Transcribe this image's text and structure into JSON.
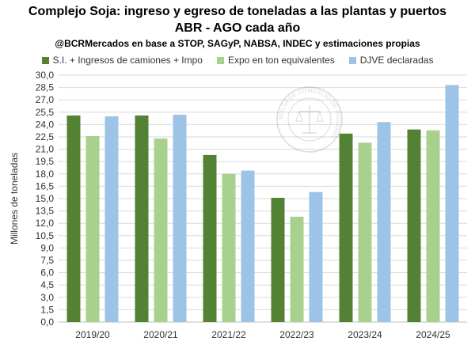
{
  "header": {
    "title": "Complejo Soja: ingreso y egreso de toneladas a las plantas y puertos",
    "subtitle": "ABR - AGO cada año",
    "source": "@BCRMercados  en base a STOP, SAGyP, NABSA, INDEC y estimaciones propias"
  },
  "watermark": {
    "text": "BOLSA DE COMERCIO DE ROSARIO"
  },
  "chart_data": {
    "type": "bar",
    "categories": [
      "2019/20",
      "2020/21",
      "2021/22",
      "2022/23",
      "2023/24",
      "2024/25"
    ],
    "ylabel": "Millones de toneladas",
    "ylim": [
      0,
      30
    ],
    "ytick_step": 1.5,
    "yticks": [
      "0,0",
      "1,5",
      "3,0",
      "4,5",
      "6,0",
      "7,5",
      "9,0",
      "10,5",
      "12,0",
      "13,5",
      "15,0",
      "16,5",
      "18,0",
      "19,5",
      "21,0",
      "22,5",
      "24,0",
      "25,5",
      "27,0",
      "28,5",
      "30,0"
    ],
    "grid": true,
    "legend_position": "top",
    "series": [
      {
        "name": "S.I. + Ingresos de camiones + Impo",
        "color": "#548235",
        "values": [
          25.1,
          25.1,
          20.3,
          15.1,
          22.9,
          23.4
        ]
      },
      {
        "name": "Expo en ton equivalentes",
        "color": "#a9d18e",
        "values": [
          22.6,
          22.3,
          18.0,
          12.8,
          21.8,
          23.3
        ]
      },
      {
        "name": "DJVE declaradas",
        "color": "#9dc3e6",
        "values": [
          25.0,
          25.2,
          18.4,
          15.8,
          24.3,
          28.8
        ]
      }
    ]
  }
}
